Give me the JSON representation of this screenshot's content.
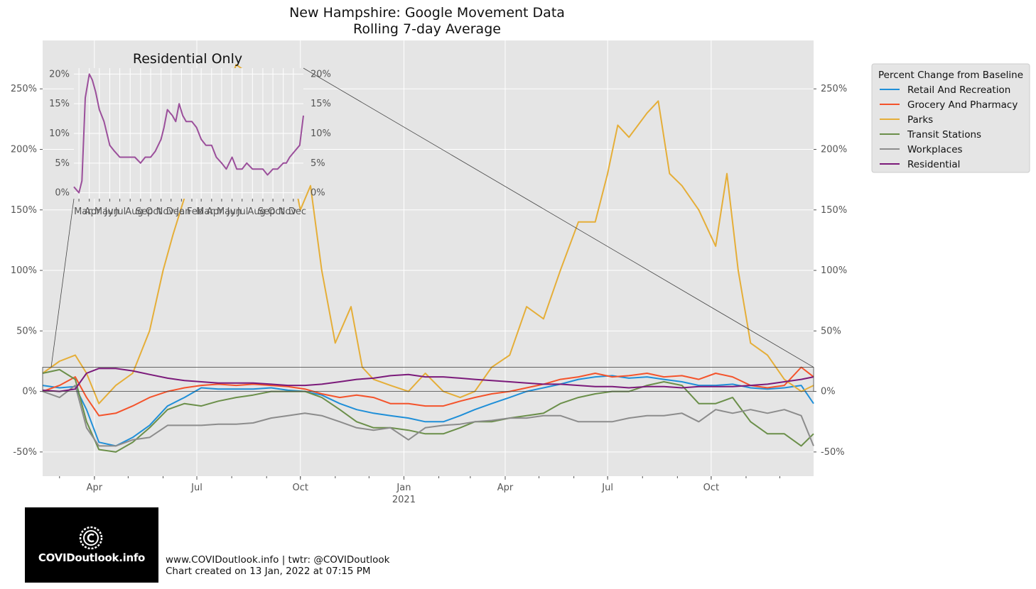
{
  "chart_data": [
    {
      "type": "line",
      "title": "New Hampshire: Google Movement Data\nRolling 7-day Average",
      "legend_title": "Percent Change from Baseline",
      "legend_position": "outside-right",
      "grid": true,
      "ylim": [
        -70,
        290
      ],
      "yticks": [
        "-50%",
        "0%",
        "50%",
        "100%",
        "150%",
        "200%",
        "250%"
      ],
      "xticks": [
        "Apr",
        "Jul",
        "Oct",
        "Jan",
        "Apr",
        "Jul",
        "Oct"
      ],
      "xsub": "2021",
      "xlim": [
        "2020-02-15",
        "2021-12-31"
      ],
      "series": [
        {
          "name": "Retail And Recreation",
          "color": "#1f8fd8",
          "x": [
            "2020-02-15",
            "2020-03-01",
            "2020-03-15",
            "2020-03-25",
            "2020-04-05",
            "2020-04-20",
            "2020-05-05",
            "2020-05-20",
            "2020-06-05",
            "2020-06-20",
            "2020-07-05",
            "2020-07-20",
            "2020-08-05",
            "2020-08-20",
            "2020-09-05",
            "2020-09-20",
            "2020-10-05",
            "2020-10-20",
            "2020-11-05",
            "2020-11-20",
            "2020-12-05",
            "2020-12-20",
            "2021-01-05",
            "2021-01-20",
            "2021-02-05",
            "2021-02-20",
            "2021-03-05",
            "2021-03-20",
            "2021-04-05",
            "2021-04-20",
            "2021-05-05",
            "2021-05-20",
            "2021-06-05",
            "2021-06-20",
            "2021-07-05",
            "2021-07-20",
            "2021-08-05",
            "2021-08-20",
            "2021-09-05",
            "2021-09-20",
            "2021-10-05",
            "2021-10-20",
            "2021-11-05",
            "2021-11-20",
            "2021-12-05",
            "2021-12-20",
            "2021-12-31"
          ],
          "y": [
            5,
            3,
            4,
            -15,
            -42,
            -45,
            -38,
            -28,
            -12,
            -5,
            3,
            2,
            2,
            2,
            3,
            1,
            0,
            -3,
            -10,
            -15,
            -18,
            -20,
            -22,
            -25,
            -25,
            -20,
            -15,
            -10,
            -5,
            0,
            3,
            6,
            10,
            12,
            13,
            11,
            12,
            10,
            8,
            5,
            5,
            6,
            3,
            2,
            3,
            5,
            -10
          ]
        },
        {
          "name": "Grocery And Pharmacy",
          "color": "#f4532b",
          "x": [
            "2020-02-15",
            "2020-03-01",
            "2020-03-15",
            "2020-03-25",
            "2020-04-05",
            "2020-04-20",
            "2020-05-05",
            "2020-05-20",
            "2020-06-05",
            "2020-06-20",
            "2020-07-05",
            "2020-07-20",
            "2020-08-05",
            "2020-08-20",
            "2020-09-05",
            "2020-09-20",
            "2020-10-05",
            "2020-10-20",
            "2020-11-05",
            "2020-11-20",
            "2020-12-05",
            "2020-12-20",
            "2021-01-05",
            "2021-01-20",
            "2021-02-05",
            "2021-02-20",
            "2021-03-05",
            "2021-03-20",
            "2021-04-05",
            "2021-04-20",
            "2021-05-05",
            "2021-05-20",
            "2021-06-05",
            "2021-06-20",
            "2021-07-05",
            "2021-07-20",
            "2021-08-05",
            "2021-08-20",
            "2021-09-05",
            "2021-09-20",
            "2021-10-05",
            "2021-10-20",
            "2021-11-05",
            "2021-11-20",
            "2021-12-05",
            "2021-12-20",
            "2021-12-31"
          ],
          "y": [
            0,
            5,
            12,
            -5,
            -20,
            -18,
            -12,
            -5,
            0,
            3,
            5,
            6,
            5,
            6,
            5,
            4,
            2,
            -2,
            -5,
            -3,
            -5,
            -10,
            -10,
            -12,
            -12,
            -8,
            -5,
            -2,
            0,
            3,
            6,
            10,
            12,
            15,
            12,
            13,
            15,
            12,
            13,
            10,
            15,
            12,
            5,
            3,
            5,
            20,
            12
          ]
        },
        {
          "name": "Parks",
          "color": "#e5ae38",
          "x": [
            "2020-02-15",
            "2020-03-01",
            "2020-03-15",
            "2020-03-25",
            "2020-04-05",
            "2020-04-20",
            "2020-05-05",
            "2020-05-20",
            "2020-06-01",
            "2020-06-10",
            "2020-06-20",
            "2020-07-05",
            "2020-07-20",
            "2020-08-05",
            "2020-08-20",
            "2020-09-05",
            "2020-09-20",
            "2020-10-01",
            "2020-10-10",
            "2020-10-20",
            "2020-11-01",
            "2020-11-15",
            "2020-11-25",
            "2020-12-05",
            "2020-12-20",
            "2021-01-05",
            "2021-01-20",
            "2021-02-05",
            "2021-02-20",
            "2021-03-05",
            "2021-03-20",
            "2021-04-05",
            "2021-04-20",
            "2021-05-05",
            "2021-05-20",
            "2021-06-05",
            "2021-06-20",
            "2021-07-01",
            "2021-07-10",
            "2021-07-20",
            "2021-08-05",
            "2021-08-15",
            "2021-08-25",
            "2021-09-05",
            "2021-09-20",
            "2021-10-05",
            "2021-10-15",
            "2021-10-25",
            "2021-11-05",
            "2021-11-20",
            "2021-12-05",
            "2021-12-20",
            "2021-12-31"
          ],
          "y": [
            15,
            25,
            30,
            15,
            -10,
            5,
            15,
            50,
            100,
            130,
            160,
            200,
            230,
            270,
            260,
            240,
            200,
            150,
            170,
            100,
            40,
            70,
            20,
            10,
            5,
            0,
            15,
            0,
            -5,
            0,
            20,
            30,
            70,
            60,
            100,
            140,
            140,
            180,
            220,
            210,
            230,
            240,
            180,
            170,
            150,
            120,
            180,
            100,
            40,
            30,
            10,
            0,
            5
          ]
        },
        {
          "name": "Transit Stations",
          "color": "#6b8f4a",
          "x": [
            "2020-02-15",
            "2020-03-01",
            "2020-03-15",
            "2020-03-25",
            "2020-04-05",
            "2020-04-20",
            "2020-05-05",
            "2020-05-20",
            "2020-06-05",
            "2020-06-20",
            "2020-07-05",
            "2020-07-20",
            "2020-08-05",
            "2020-08-20",
            "2020-09-05",
            "2020-09-20",
            "2020-10-05",
            "2020-10-20",
            "2020-11-05",
            "2020-11-20",
            "2020-12-05",
            "2020-12-20",
            "2021-01-05",
            "2021-01-20",
            "2021-02-05",
            "2021-02-20",
            "2021-03-05",
            "2021-03-20",
            "2021-04-05",
            "2021-04-20",
            "2021-05-05",
            "2021-05-20",
            "2021-06-05",
            "2021-06-20",
            "2021-07-05",
            "2021-07-20",
            "2021-08-05",
            "2021-08-20",
            "2021-09-05",
            "2021-09-20",
            "2021-10-05",
            "2021-10-20",
            "2021-11-05",
            "2021-11-20",
            "2021-12-05",
            "2021-12-20",
            "2021-12-31"
          ],
          "y": [
            15,
            18,
            10,
            -25,
            -48,
            -50,
            -42,
            -30,
            -15,
            -10,
            -12,
            -8,
            -5,
            -3,
            0,
            0,
            0,
            -5,
            -15,
            -25,
            -30,
            -30,
            -32,
            -35,
            -35,
            -30,
            -25,
            -25,
            -22,
            -20,
            -18,
            -10,
            -5,
            -2,
            0,
            0,
            5,
            8,
            5,
            -10,
            -10,
            -5,
            -25,
            -35,
            -35,
            -45,
            -35
          ]
        },
        {
          "name": "Workplaces",
          "color": "#8c8c8c",
          "x": [
            "2020-02-15",
            "2020-03-01",
            "2020-03-15",
            "2020-03-25",
            "2020-04-05",
            "2020-04-20",
            "2020-05-05",
            "2020-05-20",
            "2020-06-05",
            "2020-06-20",
            "2020-07-05",
            "2020-07-20",
            "2020-08-05",
            "2020-08-20",
            "2020-09-05",
            "2020-09-20",
            "2020-10-05",
            "2020-10-20",
            "2020-11-05",
            "2020-11-20",
            "2020-12-05",
            "2020-12-20",
            "2021-01-05",
            "2021-01-20",
            "2021-02-05",
            "2021-02-20",
            "2021-03-05",
            "2021-03-20",
            "2021-04-05",
            "2021-04-20",
            "2021-05-05",
            "2021-05-20",
            "2021-06-05",
            "2021-06-20",
            "2021-07-05",
            "2021-07-20",
            "2021-08-05",
            "2021-08-20",
            "2021-09-05",
            "2021-09-20",
            "2021-10-05",
            "2021-10-20",
            "2021-11-05",
            "2021-11-20",
            "2021-12-05",
            "2021-12-20",
            "2021-12-31"
          ],
          "y": [
            0,
            -5,
            5,
            -30,
            -45,
            -45,
            -40,
            -38,
            -28,
            -28,
            -28,
            -27,
            -27,
            -26,
            -22,
            -20,
            -18,
            -20,
            -25,
            -30,
            -32,
            -30,
            -40,
            -30,
            -28,
            -27,
            -25,
            -24,
            -22,
            -22,
            -20,
            -20,
            -25,
            -25,
            -25,
            -22,
            -20,
            -20,
            -18,
            -25,
            -15,
            -18,
            -15,
            -18,
            -15,
            -20,
            -45
          ]
        },
        {
          "name": "Residential",
          "color": "#7b1a7a",
          "x": [
            "2020-02-15",
            "2020-03-01",
            "2020-03-15",
            "2020-03-25",
            "2020-04-05",
            "2020-04-20",
            "2020-05-05",
            "2020-05-20",
            "2020-06-05",
            "2020-06-20",
            "2020-07-05",
            "2020-07-20",
            "2020-08-05",
            "2020-08-20",
            "2020-09-05",
            "2020-09-20",
            "2020-10-05",
            "2020-10-20",
            "2020-11-05",
            "2020-11-20",
            "2020-12-05",
            "2020-12-20",
            "2021-01-05",
            "2021-01-20",
            "2021-02-05",
            "2021-02-20",
            "2021-03-05",
            "2021-03-20",
            "2021-04-05",
            "2021-04-20",
            "2021-05-05",
            "2021-05-20",
            "2021-06-05",
            "2021-06-20",
            "2021-07-05",
            "2021-07-20",
            "2021-08-05",
            "2021-08-20",
            "2021-09-05",
            "2021-09-20",
            "2021-10-05",
            "2021-10-20",
            "2021-11-05",
            "2021-11-20",
            "2021-12-05",
            "2021-12-20",
            "2021-12-31"
          ],
          "y": [
            1,
            0,
            2,
            15,
            19,
            19,
            17,
            14,
            11,
            9,
            8,
            7,
            7,
            7,
            6,
            5,
            5,
            6,
            8,
            10,
            11,
            13,
            14,
            12,
            12,
            11,
            10,
            9,
            8,
            7,
            6,
            6,
            5,
            4,
            4,
            3,
            4,
            4,
            3,
            4,
            4,
            4,
            5,
            6,
            8,
            10,
            12
          ]
        }
      ]
    },
    {
      "type": "line",
      "title": "Residential Only",
      "grid": true,
      "ylim": [
        -1,
        21
      ],
      "yticks": [
        "0%",
        "5%",
        "10%",
        "15%",
        "20%"
      ],
      "xticks": [
        "Mar",
        "Apr",
        "May",
        "Jun",
        "Jul",
        "Aug",
        "Sep",
        "Oct",
        "Nov",
        "Dec",
        "Jan",
        "Feb",
        "Mar",
        "Apr",
        "May",
        "Jun",
        "Jul",
        "Aug",
        "Sep",
        "Oct",
        "Nov",
        "Dec"
      ],
      "series": [
        {
          "name": "Residential",
          "color": "#9b4f9b",
          "x": [
            "2020-02-15",
            "2020-03-01",
            "2020-03-10",
            "2020-03-20",
            "2020-04-01",
            "2020-04-10",
            "2020-04-20",
            "2020-05-01",
            "2020-05-15",
            "2020-06-01",
            "2020-06-15",
            "2020-07-01",
            "2020-07-15",
            "2020-08-01",
            "2020-08-15",
            "2020-09-01",
            "2020-09-15",
            "2020-10-01",
            "2020-10-15",
            "2020-11-01",
            "2020-11-10",
            "2020-11-20",
            "2020-12-05",
            "2020-12-15",
            "2020-12-25",
            "2021-01-05",
            "2021-01-15",
            "2021-02-01",
            "2021-02-15",
            "2021-03-01",
            "2021-03-15",
            "2021-04-01",
            "2021-04-15",
            "2021-05-01",
            "2021-05-15",
            "2021-06-01",
            "2021-06-15",
            "2021-07-01",
            "2021-07-15",
            "2021-08-01",
            "2021-08-15",
            "2021-09-01",
            "2021-09-15",
            "2021-10-01",
            "2021-10-15",
            "2021-11-01",
            "2021-11-10",
            "2021-11-20",
            "2021-12-05",
            "2021-12-20",
            "2021-12-31"
          ],
          "y": [
            1,
            0,
            2,
            16,
            20,
            19,
            17,
            14,
            12,
            8,
            7,
            6,
            6,
            6,
            6,
            5,
            6,
            6,
            7,
            9,
            11,
            14,
            13,
            12,
            15,
            13,
            12,
            12,
            11,
            9,
            8,
            8,
            6,
            5,
            4,
            6,
            4,
            4,
            5,
            4,
            4,
            4,
            3,
            4,
            4,
            5,
            5,
            6,
            7,
            8,
            13
          ]
        }
      ]
    }
  ],
  "footer": {
    "line1": "www.COVIDoutlook.info | twtr: @COVIDoutlook",
    "line2": "Chart created on 13 Jan, 2022 at 07:15 PM"
  },
  "logo": {
    "text": "COVIDoutlook.info",
    "icon": "copyright-circle-icon"
  }
}
